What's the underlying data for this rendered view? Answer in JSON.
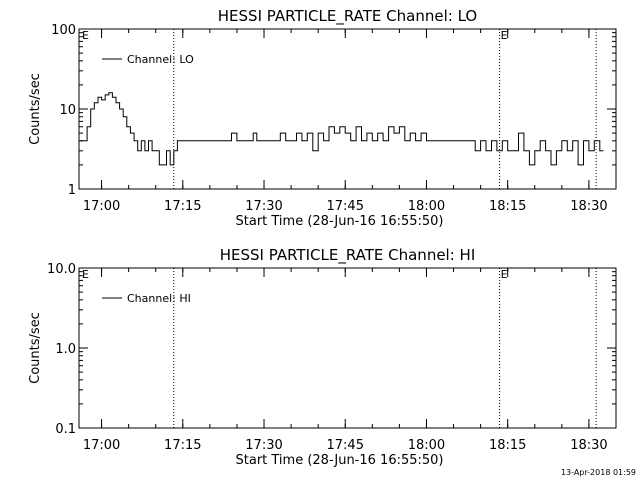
{
  "footer_timestamp": "13-Apr-2018 01:59",
  "chart_data": [
    {
      "type": "line",
      "title": "HESSI PARTICLE_RATE Channel: LO",
      "xlabel": "Start Time (28-Jun-16 16:55:50)",
      "ylabel": "Counts/sec",
      "y_scale": "log",
      "ylim": [
        1,
        100
      ],
      "y_ticks": [
        {
          "v": 1,
          "label": "1"
        },
        {
          "v": 10,
          "label": "10"
        },
        {
          "v": 100,
          "label": "100"
        }
      ],
      "xlim": [
        "16:55:50",
        "18:35:00"
      ],
      "x_ticks": [
        "17:00",
        "17:15",
        "17:30",
        "17:45",
        "18:00",
        "18:15",
        "18:30"
      ],
      "legend": {
        "label": "Channel: LO",
        "position": "top-left"
      },
      "markers": [
        {
          "time": "17:13:20",
          "label": ""
        },
        {
          "time": "18:13:30",
          "label": "E"
        },
        {
          "time": "18:31:20",
          "label": ""
        }
      ],
      "corner_label": "E",
      "series": [
        {
          "name": "Channel: LO",
          "x": [
            "16:56:00",
            "16:56:40",
            "16:57:20",
            "16:58:00",
            "16:58:40",
            "16:59:20",
            "17:00:00",
            "17:00:40",
            "17:01:20",
            "17:02:00",
            "17:02:40",
            "17:03:20",
            "17:04:00",
            "17:04:40",
            "17:05:20",
            "17:06:00",
            "17:06:40",
            "17:07:20",
            "17:08:00",
            "17:08:40",
            "17:09:20",
            "17:10:00",
            "17:10:40",
            "17:11:20",
            "17:12:00",
            "17:12:40",
            "17:13:20",
            "17:14:00",
            "17:15:00",
            "17:17:00",
            "17:20:00",
            "17:23:00",
            "17:24:00",
            "17:25:00",
            "17:26:00",
            "17:28:00",
            "17:28:40",
            "17:30:00",
            "17:31:00",
            "17:32:00",
            "17:33:00",
            "17:34:00",
            "17:35:00",
            "17:36:00",
            "17:37:00",
            "17:38:00",
            "17:39:00",
            "17:40:00",
            "17:41:00",
            "17:42:00",
            "17:43:00",
            "17:44:00",
            "17:45:00",
            "17:46:00",
            "17:47:00",
            "17:48:00",
            "17:49:00",
            "17:50:00",
            "17:51:00",
            "17:52:00",
            "17:53:00",
            "17:54:00",
            "17:55:00",
            "17:56:00",
            "17:57:00",
            "17:58:00",
            "17:59:00",
            "18:00:00",
            "18:02:00",
            "18:04:00",
            "18:05:00",
            "18:06:00",
            "18:07:00",
            "18:08:00",
            "18:09:00",
            "18:10:00",
            "18:11:00",
            "18:12:00",
            "18:13:00",
            "18:14:00",
            "18:15:00",
            "18:16:00",
            "18:17:00",
            "18:18:00",
            "18:19:00",
            "18:20:00",
            "18:21:00",
            "18:22:00",
            "18:23:00",
            "18:24:00",
            "18:25:00",
            "18:26:00",
            "18:27:00",
            "18:28:00",
            "18:29:00",
            "18:30:00",
            "18:31:00",
            "18:32:00",
            "18:32:40"
          ],
          "values": [
            4,
            4,
            6,
            10,
            12,
            14,
            13,
            15,
            16,
            14,
            12,
            10,
            8,
            6,
            5,
            4,
            3,
            4,
            3,
            4,
            3,
            3,
            2,
            2,
            3,
            2,
            3,
            4,
            4,
            4,
            4,
            4,
            5,
            4,
            4,
            5,
            4,
            4,
            4,
            4,
            5,
            4,
            4,
            5,
            4,
            5,
            3,
            5,
            4,
            6,
            5,
            6,
            5,
            4,
            6,
            4,
            5,
            4,
            5,
            4,
            6,
            5,
            6,
            4,
            5,
            4,
            5,
            4,
            4,
            4,
            4,
            4,
            4,
            4,
            3,
            4,
            3,
            4,
            3,
            4,
            3,
            3,
            5,
            3,
            2,
            3,
            4,
            3,
            2,
            3,
            4,
            3,
            4,
            2,
            4,
            3,
            4,
            3,
            3
          ]
        }
      ]
    },
    {
      "type": "line",
      "title": "HESSI PARTICLE_RATE Channel: HI",
      "xlabel": "Start Time (28-Jun-16 16:55:50)",
      "ylabel": "Counts/sec",
      "y_scale": "log",
      "ylim": [
        0.1,
        10
      ],
      "y_ticks": [
        {
          "v": 0.1,
          "label": "0.1"
        },
        {
          "v": 1,
          "label": "1.0"
        },
        {
          "v": 10,
          "label": "10.0"
        }
      ],
      "xlim": [
        "16:55:50",
        "18:35:00"
      ],
      "x_ticks": [
        "17:00",
        "17:15",
        "17:30",
        "17:45",
        "18:00",
        "18:15",
        "18:30"
      ],
      "legend": {
        "label": "Channel: HI",
        "position": "top-left"
      },
      "markers": [
        {
          "time": "17:13:20",
          "label": ""
        },
        {
          "time": "18:13:30",
          "label": "E"
        },
        {
          "time": "18:31:20",
          "label": ""
        }
      ],
      "corner_label": "E",
      "series": [
        {
          "name": "Channel: HI",
          "x": [],
          "values": []
        }
      ]
    }
  ]
}
